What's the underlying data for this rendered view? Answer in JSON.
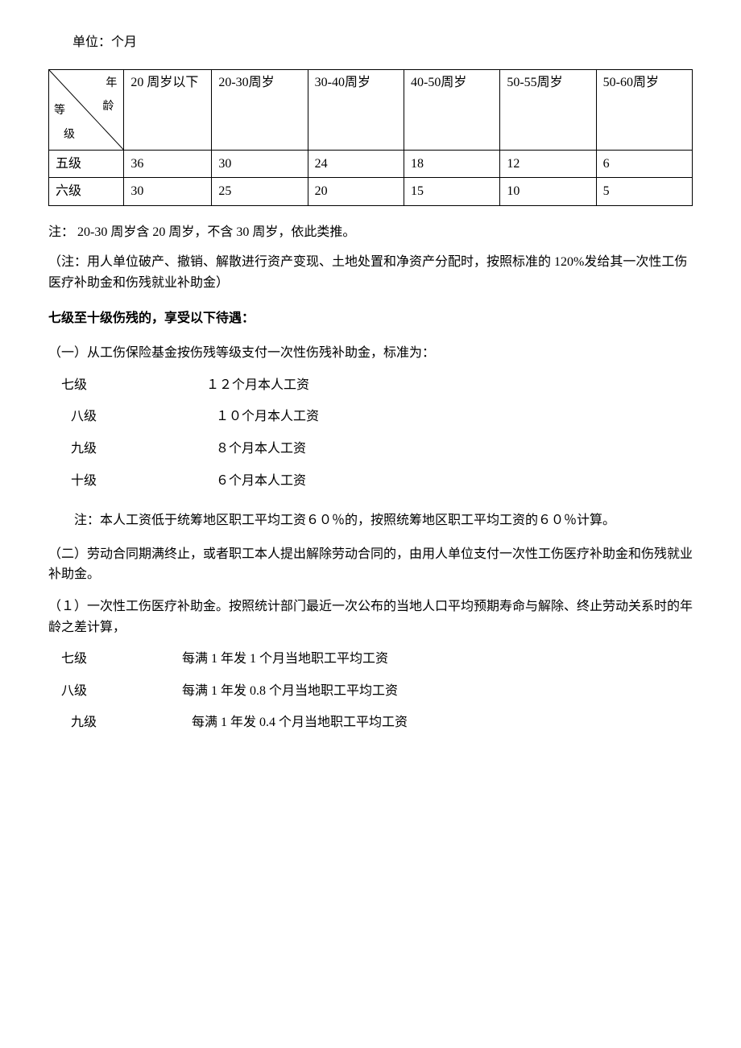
{
  "unit_label": "单位：个月",
  "table": {
    "diagonal": {
      "top": "年",
      "mid": "龄",
      "left1": "等",
      "bottom": "级"
    },
    "headers": [
      "20 周岁以下",
      "20-30周岁",
      "30-40周岁",
      "40-50周岁",
      "50-55周岁",
      "50-60周岁"
    ],
    "rows": [
      {
        "label": "五级",
        "values": [
          "36",
          "30",
          "24",
          "18",
          "12",
          "6"
        ]
      },
      {
        "label": "六级",
        "values": [
          "30",
          "25",
          "20",
          "15",
          "10",
          "5"
        ]
      }
    ],
    "column_widths": [
      "90px",
      "105px",
      "115px",
      "115px",
      "115px",
      "115px",
      "115px"
    ]
  },
  "note1": "注： 20-30 周岁含 20 周岁，不含 30 周岁，依此类推。",
  "note2": "（注：用人单位破产、撤销、解散进行资产变现、土地处置和净资产分配时，按照标准的 120%发给其一次性工伤医疗补助金和伤残就业补助金）",
  "heading1": "七级至十级伤残的，享受以下待遇：",
  "section1": {
    "intro": "（一）从工伤保险基金按伤残等级支付一次性伤残补助金，标准为：",
    "levels": [
      {
        "label": "七级",
        "value": "１２个月本人工资",
        "indent": 0
      },
      {
        "label": "八级",
        "value": "１０个月本人工资",
        "indent": 12
      },
      {
        "label": "九级",
        "value": "８个月本人工资",
        "indent": 12
      },
      {
        "label": "十级",
        "value": "６个月本人工资",
        "indent": 12
      }
    ],
    "note": "注：本人工资低于统筹地区职工平均工资６０％的，按照统筹地区职工平均工资的６０％计算。"
  },
  "section2": {
    "intro": "（二）劳动合同期满终止，或者职工本人提出解除劳动合同的，由用人单位支付一次性工伤医疗补助金和伤残就业补助金。",
    "sub1": "（１）一次性工伤医疗补助金。按照统计部门最近一次公布的当地人口平均预期寿命与解除、终止劳动关系时的年龄之差计算，",
    "levels": [
      {
        "label": "七级",
        "value": "每满 1 年发 1 个月当地职工平均工资",
        "indent": 0
      },
      {
        "label": "八级",
        "value": "每满 1 年发 0.8 个月当地职工平均工资",
        "indent": 0
      },
      {
        "label": "九级",
        "value": "每满 1 年发 0.4 个月当地职工平均工资",
        "indent": 12
      }
    ]
  }
}
